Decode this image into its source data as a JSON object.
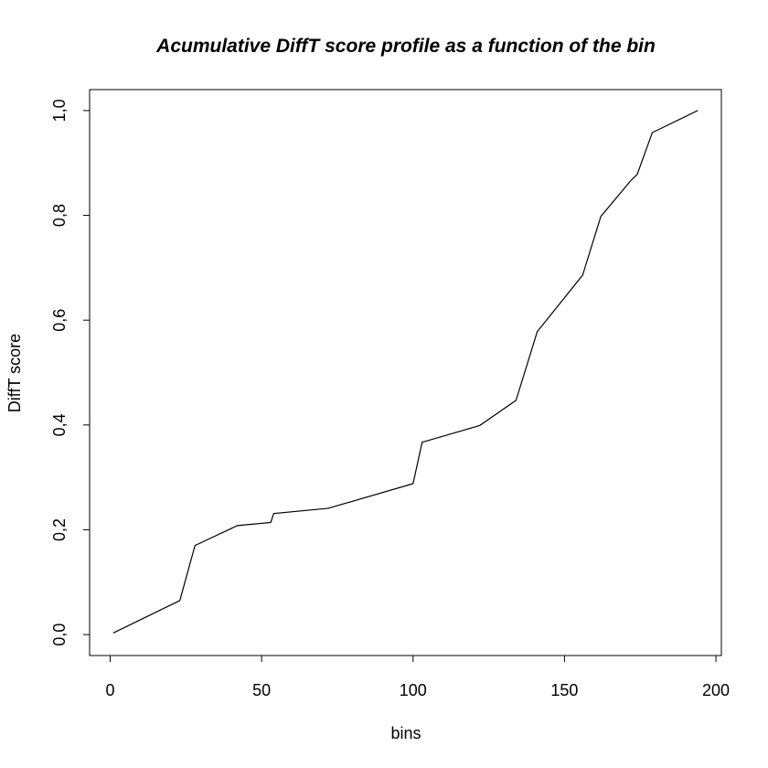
{
  "chart_data": {
    "type": "line",
    "title": "Acumulative DiffT score profile as a function of the bin",
    "xlabel": "bins",
    "ylabel": "DiffT score",
    "xlim": [
      -6.8,
      201.8
    ],
    "ylim": [
      -0.04,
      1.04
    ],
    "xticks": [
      0,
      50,
      100,
      150,
      200
    ],
    "xtick_labels": [
      "0",
      "50",
      "100",
      "150",
      "200"
    ],
    "yticks": [
      0,
      0.2,
      0.4,
      0.6,
      0.8,
      1.0
    ],
    "ytick_labels": [
      "0,0",
      "0,2",
      "0,4",
      "0,6",
      "0,8",
      "1,0"
    ],
    "grid": false,
    "line_color": "#000000",
    "series": [
      {
        "x": [
          1,
          23,
          28,
          42,
          53,
          54,
          72,
          100,
          103,
          122,
          134,
          141,
          156,
          162,
          172,
          174,
          179,
          194
        ],
        "y": [
          0.003,
          0.065,
          0.17,
          0.208,
          0.214,
          0.231,
          0.241,
          0.288,
          0.367,
          0.399,
          0.447,
          0.578,
          0.686,
          0.798,
          0.867,
          0.878,
          0.958,
          1.0
        ]
      }
    ]
  }
}
